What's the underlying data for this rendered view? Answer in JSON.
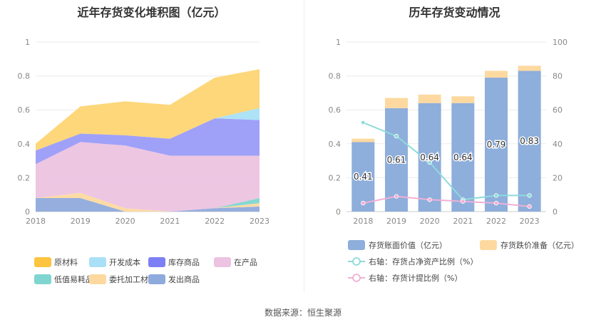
{
  "titles": {
    "left": "近年存货变化堆积图（亿元）",
    "right": "历年存货变动情况"
  },
  "source": "数据来源：恒生聚源",
  "chart_data": [
    {
      "type": "area",
      "stacked": true,
      "x": [
        "2018",
        "2019",
        "2020",
        "2021",
        "2022",
        "2023"
      ],
      "ylim": [
        0,
        1
      ],
      "yticks": [
        "0",
        "0.2",
        "0.4",
        "0.6",
        "0.8",
        "1"
      ],
      "grid": true,
      "legend_position": "bottom",
      "series": [
        {
          "name": "发出商品",
          "color": "#8faadc",
          "values": [
            0.08,
            0.08,
            0.0,
            0.0,
            0.02,
            0.03
          ]
        },
        {
          "name": "委托加工材料",
          "color": "#fdd9a0",
          "values": [
            0.0,
            0.03,
            0.02,
            0.0,
            0.0,
            0.02
          ]
        },
        {
          "name": "低值易耗品",
          "color": "#7fd6d0",
          "values": [
            0.0,
            0.0,
            0.0,
            0.0,
            0.0,
            0.03
          ]
        },
        {
          "name": "在产品",
          "color": "#ecc3e0",
          "values": [
            0.2,
            0.3,
            0.37,
            0.33,
            0.31,
            0.25
          ]
        },
        {
          "name": "库存商品",
          "color": "#9a9cf8",
          "values": [
            0.08,
            0.05,
            0.06,
            0.1,
            0.22,
            0.21
          ]
        },
        {
          "name": "开发成本",
          "color": "#a9e0f7",
          "values": [
            0.0,
            0.0,
            0.0,
            0.0,
            0.0,
            0.07
          ]
        },
        {
          "name": "原材料",
          "color": "#fdd573",
          "values": [
            0.04,
            0.16,
            0.2,
            0.2,
            0.24,
            0.23
          ]
        }
      ],
      "legend_order": [
        "原材料",
        "开发成本",
        "库存商品",
        "在产品",
        "低值易耗品",
        "委托加工材料",
        "发出商品"
      ],
      "legend_swatch": {
        "原材料": "#fdc440",
        "开发成本": "#a9e0f7",
        "库存商品": "#7d7ff5",
        "在产品": "#ecc3e0",
        "低值易耗品": "#7fd6d0",
        "委托加工材料": "#fdd9a0",
        "发出商品": "#8faadc"
      }
    },
    {
      "type": "bar",
      "stacked": true,
      "categories": [
        "2018",
        "2019",
        "2020",
        "2021",
        "2022",
        "2023"
      ],
      "ylim": [
        0,
        1
      ],
      "yticks": [
        "0",
        "0.2",
        "0.4",
        "0.6",
        "0.8",
        "1"
      ],
      "y2lim": [
        0,
        100
      ],
      "y2ticks": [
        "0",
        "20",
        "40",
        "60",
        "80",
        "100"
      ],
      "legend_position": "bottom",
      "series": [
        {
          "name": "存货账面价值（亿元）",
          "type": "bar",
          "color": "#8eaedb",
          "values": [
            0.41,
            0.61,
            0.64,
            0.64,
            0.79,
            0.83
          ],
          "labels": [
            "0.41",
            "0.61",
            "0.64",
            "0.64",
            "0.79",
            "0.83"
          ]
        },
        {
          "name": "存货跌价准备（亿元）",
          "type": "bar",
          "color": "#fdd9a0",
          "values": [
            0.02,
            0.06,
            0.05,
            0.04,
            0.04,
            0.03
          ]
        },
        {
          "name": "右轴：存货占净资产比例（%）",
          "type": "line",
          "axis": "right",
          "color": "#8ddbdb",
          "values": [
            52.5,
            44.5,
            29,
            7,
            9.5,
            9.5
          ]
        },
        {
          "name": "右轴：存货计提比例（%）",
          "type": "line",
          "axis": "right",
          "color": "#f0b0d4",
          "values": [
            5,
            9,
            7,
            6,
            5,
            3
          ]
        }
      ]
    }
  ]
}
